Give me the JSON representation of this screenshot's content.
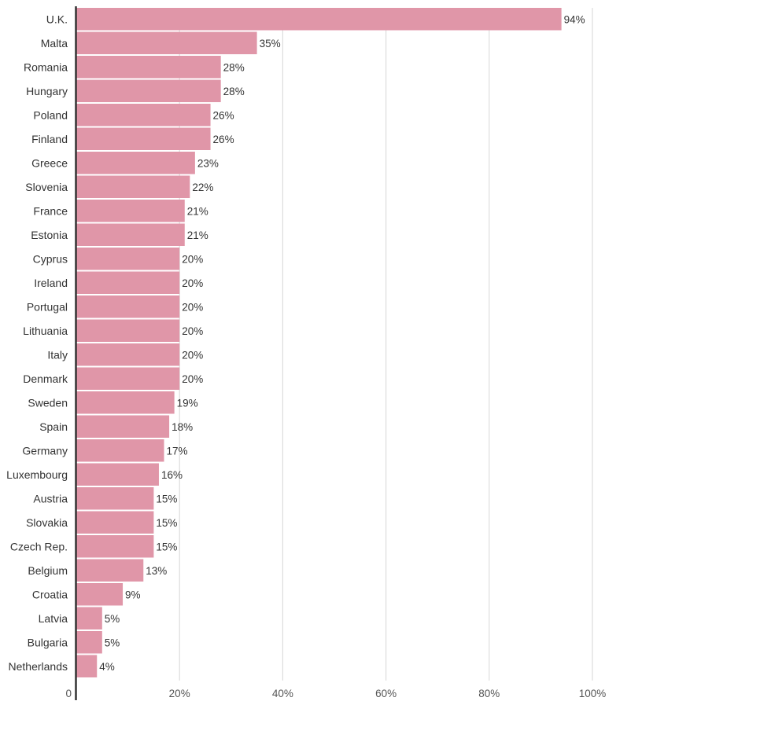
{
  "chart_data": {
    "type": "bar",
    "orientation": "horizontal",
    "categories": [
      "U.K.",
      "Malta",
      "Romania",
      "Hungary",
      "Poland",
      "Finland",
      "Greece",
      "Slovenia",
      "France",
      "Estonia",
      "Cyprus",
      "Ireland",
      "Portugal",
      "Lithuania",
      "Italy",
      "Denmark",
      "Sweden",
      "Spain",
      "Germany",
      "Luxembourg",
      "Austria",
      "Slovakia",
      "Czech Rep.",
      "Belgium",
      "Croatia",
      "Latvia",
      "Bulgaria",
      "Netherlands"
    ],
    "values": [
      94,
      35,
      28,
      28,
      26,
      26,
      23,
      22,
      21,
      21,
      20,
      20,
      20,
      20,
      20,
      20,
      19,
      18,
      17,
      16,
      15,
      15,
      15,
      13,
      9,
      5,
      5,
      4
    ],
    "value_labels": [
      "94%",
      "35%",
      "28%",
      "28%",
      "26%",
      "26%",
      "23%",
      "22%",
      "21%",
      "21%",
      "20%",
      "20%",
      "20%",
      "20%",
      "20%",
      "20%",
      "19%",
      "18%",
      "17%",
      "16%",
      "15%",
      "15%",
      "15%",
      "13%",
      "9%",
      "5%",
      "5%",
      "4%"
    ],
    "xlim": [
      0,
      100
    ],
    "xticks": [
      0,
      20,
      40,
      60,
      80,
      100
    ],
    "xtick_labels": [
      "0",
      "20%",
      "40%",
      "60%",
      "80%",
      "100%"
    ],
    "grid": "vertical",
    "bar_color": "#e096a8",
    "grid_color": "#dddddd",
    "axis_color": "#333333"
  }
}
